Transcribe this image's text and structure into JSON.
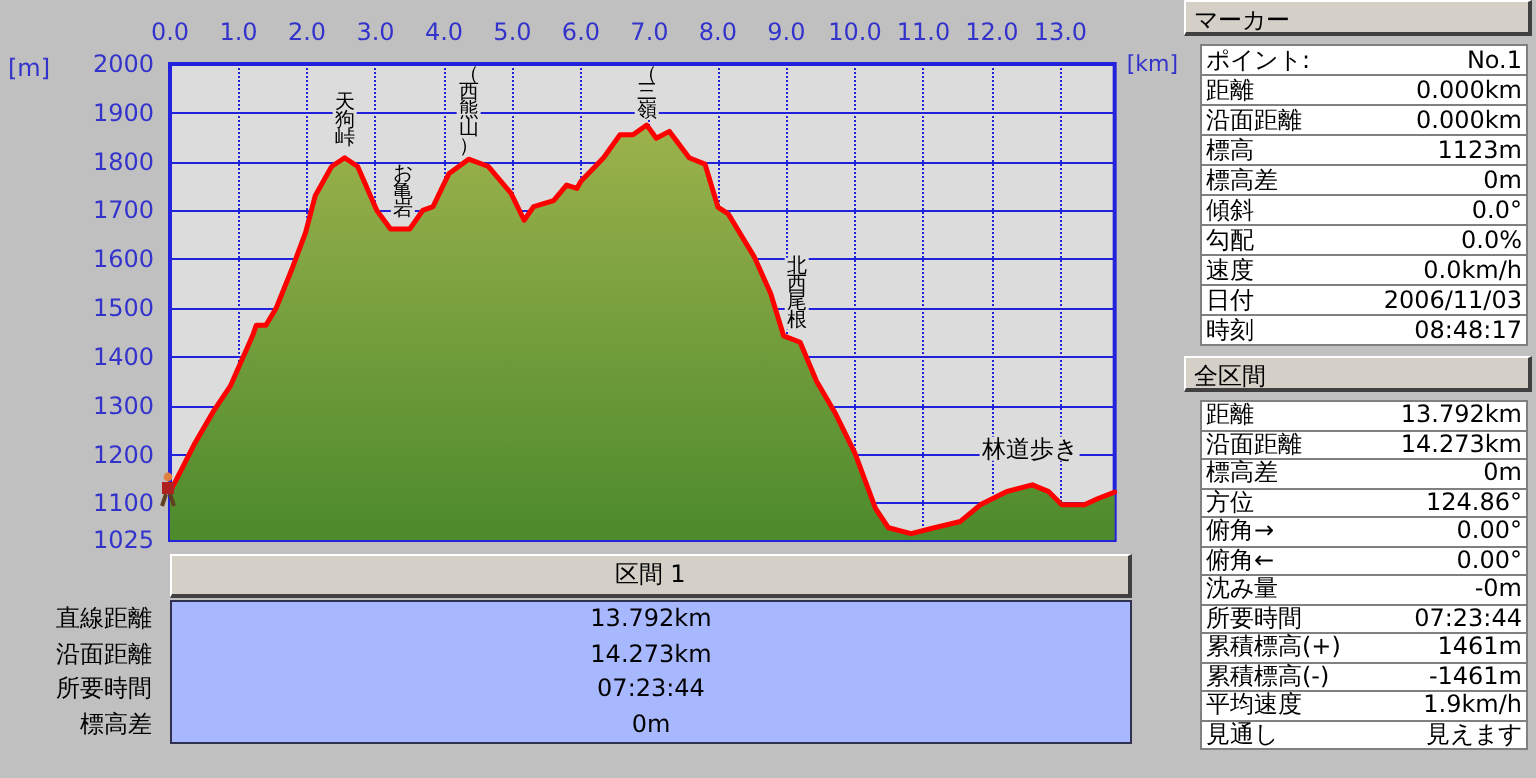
{
  "chart_data": [
    {
      "type": "area",
      "xlabel": "[km]",
      "ylabel": "[m]",
      "color": "#ff0000",
      "marker": "none",
      "grid": true,
      "x": [
        0,
        0.35,
        0.64,
        0.88,
        1.21,
        1.26,
        1.4,
        1.55,
        1.78,
        1.98,
        2.12,
        2.36,
        2.55,
        2.74,
        3.02,
        3.22,
        3.5,
        3.69,
        3.84,
        4.07,
        4.36,
        4.65,
        4.98,
        5.17,
        5.31,
        5.6,
        5.79,
        5.94,
        6.0,
        6.33,
        6.57,
        6.76,
        6.96,
        7.1,
        7.29,
        7.58,
        7.81,
        8.0,
        8.15,
        8.53,
        8.77,
        8.96,
        9.2,
        9.44,
        9.72,
        10.0,
        10.3,
        10.49,
        10.82,
        11.16,
        11.54,
        11.83,
        12.21,
        12.59,
        12.83,
        13.02,
        13.35,
        13.55,
        13.792
      ],
      "values": [
        1123,
        1220,
        1290,
        1340,
        1445,
        1465,
        1465,
        1500,
        1580,
        1655,
        1730,
        1790,
        1808,
        1790,
        1700,
        1662,
        1662,
        1700,
        1708,
        1775,
        1805,
        1790,
        1735,
        1680,
        1708,
        1720,
        1752,
        1745,
        1760,
        1808,
        1855,
        1855,
        1875,
        1848,
        1862,
        1808,
        1795,
        1707,
        1693,
        1605,
        1530,
        1443,
        1430,
        1350,
        1283,
        1203,
        1090,
        1050,
        1038,
        1050,
        1063,
        1097,
        1124,
        1138,
        1124,
        1097,
        1097,
        1110,
        1123
      ],
      "xlim": [
        0,
        13.792
      ],
      "xticks": [
        {
          "value": 0,
          "label": "0.0"
        },
        {
          "value": 1,
          "label": "1.0"
        },
        {
          "value": 2,
          "label": "2.0"
        },
        {
          "value": 3,
          "label": "3.0"
        },
        {
          "value": 4,
          "label": "4.0"
        },
        {
          "value": 5,
          "label": "5.0"
        },
        {
          "value": 6,
          "label": "6.0"
        },
        {
          "value": 7,
          "label": "7.0"
        },
        {
          "value": 8,
          "label": "8.0"
        },
        {
          "value": 9,
          "label": "9.0"
        },
        {
          "value": 10,
          "label": "10.0"
        },
        {
          "value": 11,
          "label": "11.0"
        },
        {
          "value": 12,
          "label": "12.0"
        },
        {
          "value": 13,
          "label": "13.0"
        }
      ],
      "ylim": [
        1025,
        2000
      ],
      "yticks": [
        1025,
        1100,
        1200,
        1300,
        1400,
        1500,
        1600,
        1700,
        1800,
        1900,
        2000
      ],
      "annotations": [
        {
          "text": "天狗峠",
          "x": 2.55,
          "y": 1808
        },
        {
          "text": "お亀岩",
          "x": 3.4,
          "y": 1662
        },
        {
          "text": "（西熊山）",
          "x": 4.36,
          "y": 1805
        },
        {
          "text": "（三嶺",
          "x": 6.96,
          "y": 1875
        },
        {
          "text": "北西尾根",
          "x": 9.15,
          "y": 1435
        },
        {
          "text": "林道歩き",
          "x": 12.55,
          "y": 1138
        }
      ]
    },
    {
      "type": "other",
      "title": "マーカー",
      "annotations": [
        "ポイント:",
        "No.1",
        "距離",
        "0.000km",
        "沿面距離",
        "0.000km",
        "標高",
        "1123m",
        "標高差",
        "0m",
        "傾斜",
        "0.0°",
        "勾配",
        "0.0%",
        "速度",
        "0.0km/h",
        "日付",
        "2006/11/03",
        "時刻",
        "08:48:17"
      ]
    },
    {
      "type": "other",
      "title": "全区間",
      "annotations": [
        "距離",
        "13.792km",
        "沿面距離",
        "14.273km",
        "標高差",
        "0m",
        "方位",
        "124.86°",
        "俯角→",
        "0.00°",
        "俯角←",
        "0.00°",
        "沈み量",
        "-0m",
        "所要時間",
        "07:23:44",
        "累積標高(+)",
        "1461m",
        "累積標高(-)",
        "-1461m",
        "平均速度",
        "1.9km/h",
        "見通し",
        "見えます"
      ]
    },
    {
      "type": "other",
      "title": "区間 1",
      "annotations": [
        "直線距離",
        "13.792km",
        "沿面距離",
        "14.273km",
        "所要時間",
        "07:23:44",
        "標高差",
        "0m"
      ]
    }
  ]
}
